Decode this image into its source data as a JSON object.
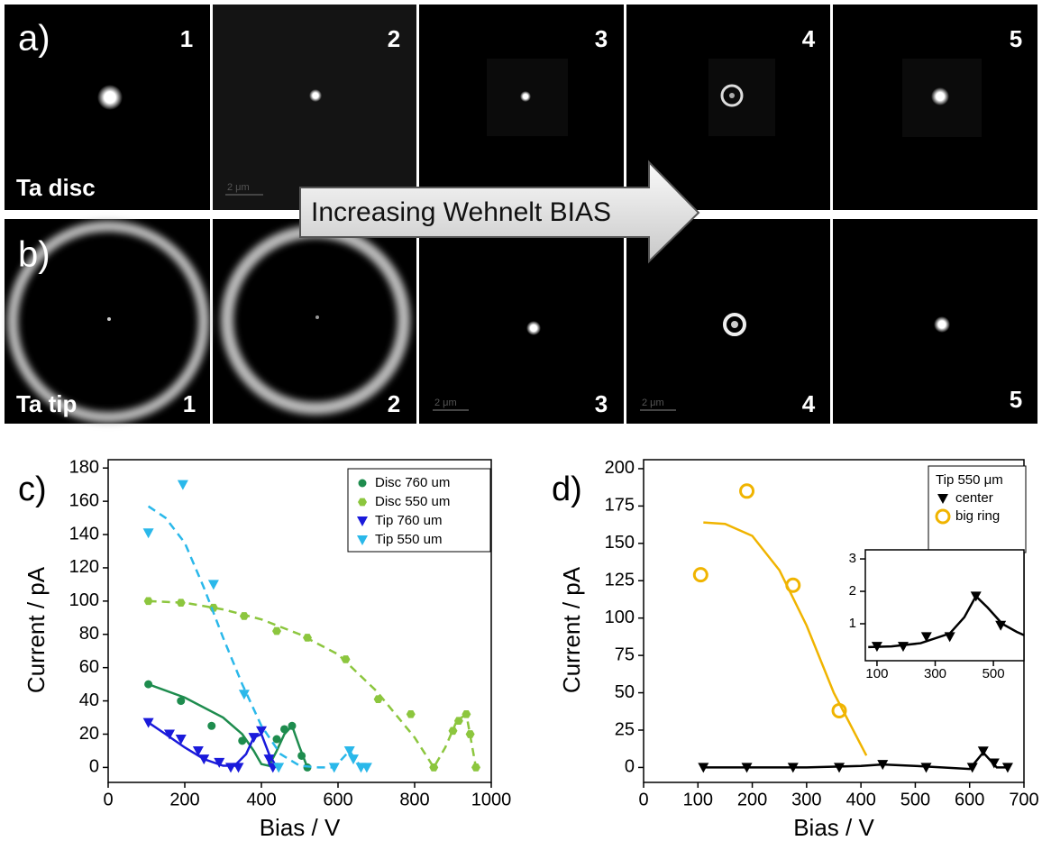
{
  "figure": {
    "panel_a": {
      "label": "a)",
      "sample": "Ta disc",
      "tiles": [
        "1",
        "2",
        "3",
        "4",
        "5"
      ]
    },
    "panel_b": {
      "label": "b)",
      "sample": "Ta tip",
      "tiles": [
        "1",
        "2",
        "3",
        "4",
        "5"
      ]
    },
    "arrow_text": "Increasing Wehnelt BIAS",
    "scale_bars": [
      "2 μm",
      "2 μm",
      "2 μm"
    ]
  },
  "chart_data": [
    {
      "type": "scatter",
      "panel_label": "c)",
      "xlabel": "Bias / V",
      "ylabel": "Current / pA",
      "xlim": [
        0,
        1000
      ],
      "ylim": [
        -9,
        185
      ],
      "xticks": [
        0,
        200,
        400,
        600,
        800,
        1000
      ],
      "yticks": [
        0,
        20,
        40,
        60,
        80,
        100,
        120,
        140,
        160,
        180
      ],
      "legend": "upper right",
      "series": [
        {
          "name": "Disc 760 um",
          "color": "#1e8c4e",
          "marker": "circle",
          "line_style": "solid",
          "x": [
            105,
            190,
            270,
            350,
            440,
            460,
            480,
            505,
            520
          ],
          "values": [
            50,
            40,
            25,
            16,
            17,
            23,
            25,
            7,
            0
          ],
          "fit": {
            "x": [
              105,
              200,
              300,
              350,
              380,
              400,
              420,
              440,
              460,
              480,
              500,
              520
            ],
            "y": [
              50,
              42,
              30,
              20,
              10,
              2,
              1,
              10,
              20,
              25,
              12,
              0
            ]
          }
        },
        {
          "name": "Disc 550 um",
          "color": "#8cc63e",
          "marker": "hexagon",
          "line_style": "dashed",
          "x": [
            105,
            190,
            275,
            355,
            440,
            520,
            620,
            705,
            790,
            850,
            900,
            915,
            935,
            945,
            960
          ],
          "values": [
            100,
            99,
            96,
            91,
            82,
            78,
            65,
            41,
            32,
            0,
            22,
            28,
            32,
            20,
            0
          ],
          "fit": {
            "x": [
              105,
              200,
              300,
              400,
              500,
              600,
              700,
              800,
              850,
              880,
              910,
              935,
              960
            ],
            "y": [
              100,
              99,
              95,
              89,
              80,
              68,
              46,
              18,
              0,
              12,
              28,
              32,
              0
            ]
          }
        },
        {
          "name": "Tip 760 um",
          "color": "#1a1adb",
          "marker": "triangle-down",
          "line_style": "solid",
          "x": [
            105,
            160,
            190,
            235,
            250,
            290,
            320,
            340,
            380,
            400,
            420,
            430
          ],
          "values": [
            27,
            20,
            17,
            10,
            5,
            3,
            0,
            0,
            18,
            22,
            5,
            0
          ],
          "fit": {
            "x": [
              105,
              150,
              200,
              250,
              300,
              330,
              360,
              380,
              400,
              420,
              440
            ],
            "y": [
              27,
              20,
              12,
              5,
              1,
              1,
              8,
              18,
              20,
              8,
              0
            ]
          }
        },
        {
          "name": "Tip 550 um",
          "color": "#2ab8ea",
          "marker": "triangle-down",
          "line_style": "dashed",
          "x": [
            105,
            195,
            275,
            355,
            445,
            590,
            630,
            640,
            660,
            675
          ],
          "values": [
            141,
            170,
            110,
            44,
            0,
            0,
            10,
            5,
            0,
            0
          ],
          "fit": {
            "x": [
              105,
              150,
              200,
              250,
              300,
              350,
              400,
              450,
              500,
              550,
              590,
              610,
              630,
              650,
              670
            ],
            "y": [
              157,
              150,
              135,
              108,
              78,
              50,
              25,
              8,
              1,
              0,
              0,
              5,
              10,
              3,
              0
            ]
          }
        }
      ]
    },
    {
      "type": "scatter",
      "panel_label": "d)",
      "xlabel": "Bias / V",
      "ylabel": "Current / pA",
      "xlim": [
        0,
        700
      ],
      "ylim": [
        -10,
        206
      ],
      "xticks": [
        0,
        100,
        200,
        300,
        400,
        500,
        600,
        700
      ],
      "yticks": [
        0,
        25,
        50,
        75,
        100,
        125,
        150,
        175,
        200
      ],
      "legend": "upper right",
      "legend_title": "Tip 550 μm",
      "series": [
        {
          "name": "center",
          "color": "#000000",
          "marker": "triangle-down",
          "line_style": "solid",
          "x": [
            110,
            190,
            275,
            360,
            440,
            520,
            605,
            625,
            645,
            670
          ],
          "values": [
            0,
            0,
            0,
            0,
            2,
            0,
            0,
            11,
            3,
            0
          ],
          "fit": {
            "x": [
              110,
              200,
              300,
              400,
              440,
              500,
              600,
              625,
              650,
              670
            ],
            "y": [
              0,
              0,
              0,
              1,
              2,
              1,
              -1,
              10,
              0,
              0
            ]
          }
        },
        {
          "name": "big ring",
          "color": "#f0b400",
          "marker": "open-circle",
          "line_style": "solid",
          "x": [
            105,
            190,
            275,
            360
          ],
          "values": [
            129,
            185,
            122,
            38
          ],
          "fit": {
            "x": [
              110,
              150,
              200,
              250,
              300,
              350,
              410
            ],
            "y": [
              164,
              163,
              155,
              132,
              95,
              50,
              8
            ]
          }
        }
      ]
    },
    {
      "type": "scatter",
      "xlim": [
        60,
        605
      ],
      "ylim": [
        -0.14,
        3.28
      ],
      "xticks": [
        100,
        300,
        500
      ],
      "yticks": [
        1,
        2,
        3
      ],
      "series": [
        {
          "color": "#000000",
          "marker": "triangle-down",
          "line_style": "solid",
          "x": [
            100,
            190,
            270,
            350,
            440,
            525
          ],
          "values": [
            0.3,
            0.3,
            0.6,
            0.6,
            1.85,
            0.95
          ],
          "fit": {
            "x": [
              70,
              150,
              250,
              350,
              400,
              440,
              480,
              530,
              580,
              605
            ],
            "y": [
              0.28,
              0.3,
              0.4,
              0.7,
              1.2,
              1.85,
              1.5,
              1.0,
              0.75,
              0.65
            ]
          }
        }
      ]
    }
  ]
}
